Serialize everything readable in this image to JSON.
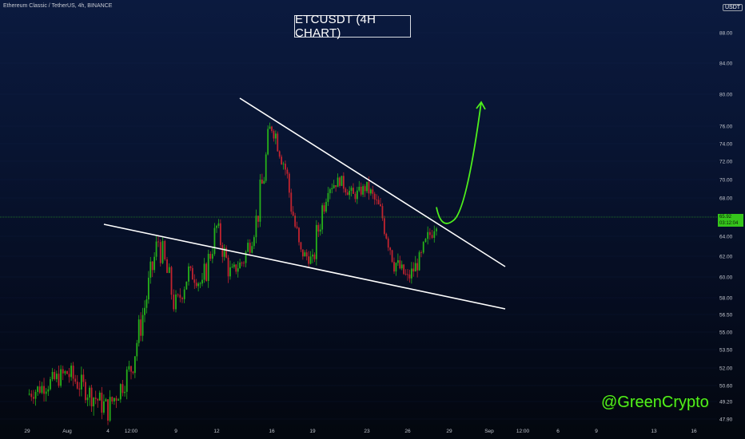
{
  "header": {
    "symbol_line": "Ethereum Classic / TetherUS, 4h, BINANCE"
  },
  "title": "ETCUSDT (4H CHART)",
  "watermark": "@GreenCrypto",
  "price_axis": {
    "currency_badge": "USDT",
    "last_price": "65.92",
    "countdown": "03:12:04"
  },
  "colors": {
    "up": "#26b11a",
    "down": "#c2242f",
    "trendline": "#ffffff",
    "projection": "#4ef01c",
    "price_line": "#35c51b"
  },
  "chart_data": {
    "type": "candlestick",
    "title": "ETCUSDT (4H CHART)",
    "x_ticks": [
      "29",
      "Aug",
      "4",
      "12:00",
      "9",
      "12",
      "16",
      "19",
      "23",
      "26",
      "29",
      "Sep",
      "12:00",
      "6",
      "9",
      "13",
      "16"
    ],
    "y_ticks": [
      47.9,
      49.2,
      50.6,
      52.0,
      53.5,
      55.0,
      56.5,
      58.0,
      60.0,
      62.0,
      64.0,
      66.0,
      68.0,
      70.0,
      72.0,
      74.0,
      76.0,
      80.0,
      84.0,
      88.0
    ],
    "y_range": [
      47.5,
      94.0
    ],
    "last_price": 65.92,
    "price_path": [
      {
        "t": "Jul 29",
        "price": 49.8
      },
      {
        "t": "Aug 1",
        "price": 51.6
      },
      {
        "t": "Aug 4",
        "price": 48.6
      },
      {
        "t": "Aug 6",
        "price": 52.0
      },
      {
        "t": "Aug 7",
        "price": 57.2
      },
      {
        "t": "Aug 8",
        "price": 63.6
      },
      {
        "t": "Aug 9",
        "price": 57.0
      },
      {
        "t": "Aug 10",
        "price": 60.5
      },
      {
        "t": "Aug 11",
        "price": 59.2
      },
      {
        "t": "Aug 12",
        "price": 64.8
      },
      {
        "t": "Aug 13",
        "price": 60.3
      },
      {
        "t": "Aug 14",
        "price": 61.6
      },
      {
        "t": "Aug 15",
        "price": 66.3
      },
      {
        "t": "Aug 16",
        "price": 76.6
      },
      {
        "t": "Aug 17",
        "price": 71.2
      },
      {
        "t": "Aug 18",
        "price": 62.5
      },
      {
        "t": "Aug 19",
        "price": 61.6
      },
      {
        "t": "Aug 20",
        "price": 69.0
      },
      {
        "t": "Aug 21",
        "price": 69.9
      },
      {
        "t": "Aug 22",
        "price": 68.2
      },
      {
        "t": "Aug 23",
        "price": 69.2
      },
      {
        "t": "Aug 24",
        "price": 66.6
      },
      {
        "t": "Aug 25",
        "price": 61.6
      },
      {
        "t": "Aug 26",
        "price": 59.8
      },
      {
        "t": "Aug 27",
        "price": 61.9
      },
      {
        "t": "Aug 28",
        "price": 65.92
      }
    ],
    "trendlines": [
      {
        "name": "upper resistance",
        "from": {
          "t": "Aug 14",
          "price": 79.5
        },
        "to": {
          "t": "Sep 1",
          "price": 61.0
        }
      },
      {
        "name": "lower support",
        "from": {
          "t": "Aug 4",
          "price": 65.2
        },
        "to": {
          "t": "Sep 1",
          "price": 57.0
        }
      }
    ],
    "projection": {
      "from": {
        "t": "Aug 28",
        "price": 65.8
      },
      "to": {
        "t": "Aug 31",
        "price": 79.0
      }
    }
  }
}
